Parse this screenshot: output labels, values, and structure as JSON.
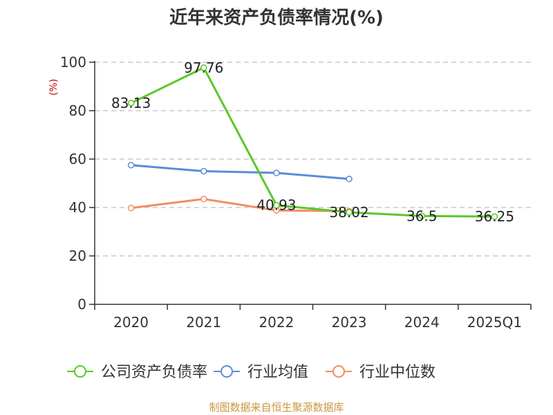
{
  "chart_data": {
    "type": "line",
    "title": "近年来资产负债率情况(%)",
    "unit": "(%)",
    "categories": [
      "2020",
      "2021",
      "2022",
      "2023",
      "2024",
      "2025Q1"
    ],
    "ylim": [
      0,
      100
    ],
    "yticks": [
      0,
      20,
      40,
      60,
      80,
      100
    ],
    "grid": true,
    "legend_position": "bottom",
    "series": [
      {
        "name": "公司资产负债率",
        "color": "#5ac828",
        "values": [
          83.13,
          97.76,
          40.93,
          38.02,
          36.5,
          36.25
        ],
        "labels": [
          "83.13",
          "97.76",
          "40.93",
          "38.02",
          "36.5",
          "36.25"
        ]
      },
      {
        "name": "行业均值",
        "color": "#5b8bd9",
        "values": [
          57.5,
          55.0,
          54.3,
          51.8,
          null,
          null
        ]
      },
      {
        "name": "行业中位数",
        "color": "#f28d62",
        "values": [
          39.8,
          43.5,
          38.8,
          38.5,
          null,
          null
        ]
      }
    ],
    "footer": "制图数据来自恒生聚源数据库"
  }
}
